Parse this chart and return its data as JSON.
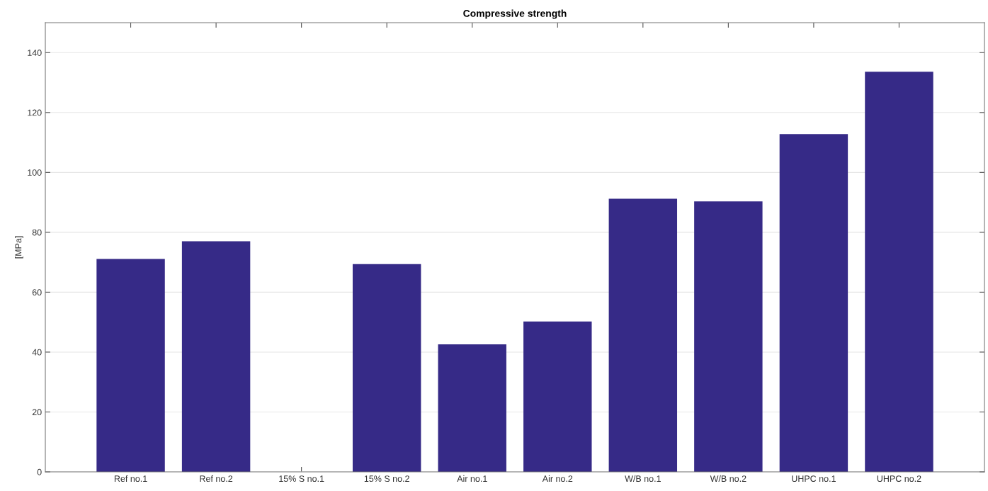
{
  "chart_data": {
    "type": "bar",
    "title": "Compressive strength",
    "ylabel": "[MPa]",
    "categories": [
      "Ref no.1",
      "Ref no.2",
      "15% S no.1",
      "15% S no.2",
      "Air no.1",
      "Air no.2",
      "W/B no.1",
      "W/B no.2",
      "UHPC no.1",
      "UHPC no.2"
    ],
    "values": [
      71.1,
      77,
      0,
      69.4,
      42.6,
      50.2,
      91.2,
      90.3,
      112.8,
      133.6
    ],
    "color": "#362a87",
    "ylim": [
      0,
      150
    ],
    "yticks": [
      0,
      20,
      40,
      60,
      80,
      100,
      120,
      140
    ],
    "grid": "y"
  }
}
